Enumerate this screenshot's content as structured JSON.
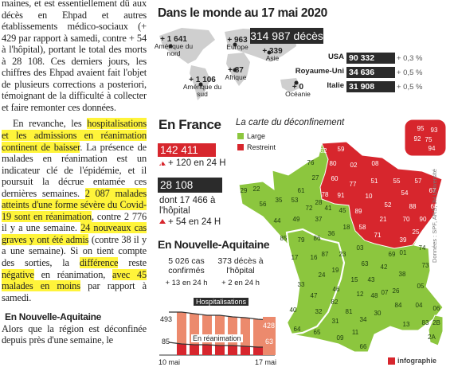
{
  "article": {
    "paragraphs": [
      [
        {
          "text": "maines, et est essentiellement dû aux décès en Ehpad et autres établissements médico-sociaux (+ 429 par rapport à samedi, contre + 54 à l'hôpital), portant le total des morts à 28 108. Ces derniers jours, les chiffres des Ehpad avaient fait l'objet de plusieurs corrections a posteriori, témoignant de la difficulté à collecter et faire remonter ces données.",
          "highlight": false
        }
      ],
      [
        {
          "text": "En revanche, les ",
          "highlight": false
        },
        {
          "text": "hospitalisations et les admissions en réanimation continent de baisser",
          "highlight": true
        },
        {
          "text": ". La présence de malades en réanimation est un indicateur clé de l'épidémie, et il poursuit la décrue entamée ces dernières semaines. ",
          "highlight": false
        },
        {
          "text": "2 087 malades atteints d'une forme sévère du Covid-19 sont en réanimation",
          "highlight": true
        },
        {
          "text": ", contre 2 776 il y a une semaine. ",
          "highlight": false
        },
        {
          "text": "24 nouveaux cas graves y ont été admis",
          "highlight": true
        },
        {
          "text": " (contre 38 il y a une semaine). Si on tient compte des sorties, la ",
          "highlight": false
        },
        {
          "text": "différence",
          "highlight": true
        },
        {
          "text": " reste ",
          "highlight": false
        },
        {
          "text": "négative",
          "highlight": true
        },
        {
          "text": " en réanimation, ",
          "highlight": false
        },
        {
          "text": "avec 45 malades en moins",
          "highlight": true
        },
        {
          "text": " par rapport à samedi.",
          "highlight": false
        }
      ]
    ],
    "subheading": "En Nouvelle-Aquitaine",
    "closing": "Alors que la région est déconfinée depuis près d'une semaine, le"
  },
  "world": {
    "title": "Dans le monde au 17 mai 2020",
    "total": "314 987 décès",
    "regions": [
      {
        "change": "+ 1 641",
        "name": "Amérique du nord"
      },
      {
        "change": "+ 963",
        "name": "Europe"
      },
      {
        "change": "+ 339",
        "name": "Asie"
      },
      {
        "change": "+ 87",
        "name": "Afrique"
      },
      {
        "change": "+ 1 106",
        "name": "Amérique du sud"
      },
      {
        "change": "+ 0",
        "name": "Océanie"
      }
    ],
    "countries": [
      {
        "name": "USA",
        "deaths": "90 332",
        "change": "+ 0,3 %"
      },
      {
        "name": "Royaume-Uni",
        "deaths": "34 636",
        "change": "+ 0,5 %"
      },
      {
        "name": "Italie",
        "deaths": "31 908",
        "change": "+ 0,5 %"
      }
    ]
  },
  "france": {
    "title": "En France",
    "cases": "142 411 cas",
    "cases_change": "+ 120 en 24 H",
    "deaths": "28 108 décès",
    "hospital": "dont 17 466 à l'hôpital",
    "deaths_change": "+ 54 en 24 H"
  },
  "aquitaine": {
    "title": "En Nouvelle-Aquitaine",
    "cases": "5 026 cas confirmés",
    "cases_change": "+ 13 en 24 h",
    "deaths": "373 décès à l'hôpital",
    "deaths_change": "+ 2 en 24 h",
    "chart": {
      "hosp_label": "Hospitalisations",
      "hosp_start": "493",
      "hosp_end": "428",
      "rea_label": "En réanimation",
      "rea_start": "85",
      "rea_end": "63",
      "x_start": "10 mai",
      "x_end": "17 mai"
    }
  },
  "map": {
    "title": "La carte du déconfinement",
    "legend": [
      {
        "label": "Large",
        "color": "#8cc63e"
      },
      {
        "label": "Restreint",
        "color": "#d7262d"
      }
    ],
    "departments": [
      {
        "code": "62",
        "zone": 1
      },
      {
        "code": "59",
        "zone": 1
      },
      {
        "code": "80",
        "zone": 1
      },
      {
        "code": "02",
        "zone": 1
      },
      {
        "code": "08",
        "zone": 1
      },
      {
        "code": "60",
        "zone": 1
      },
      {
        "code": "78",
        "zone": 1
      },
      {
        "code": "91",
        "zone": 1
      },
      {
        "code": "77",
        "zone": 1
      },
      {
        "code": "51",
        "zone": 1
      },
      {
        "code": "55",
        "zone": 1
      },
      {
        "code": "57",
        "zone": 1
      },
      {
        "code": "67",
        "zone": 1
      },
      {
        "code": "54",
        "zone": 1
      },
      {
        "code": "88",
        "zone": 1
      },
      {
        "code": "68",
        "zone": 1
      },
      {
        "code": "52",
        "zone": 1
      },
      {
        "code": "10",
        "zone": 1
      },
      {
        "code": "89",
        "zone": 1
      },
      {
        "code": "21",
        "zone": 1
      },
      {
        "code": "70",
        "zone": 1
      },
      {
        "code": "90",
        "zone": 1
      },
      {
        "code": "25",
        "zone": 1
      },
      {
        "code": "39",
        "zone": 1
      },
      {
        "code": "71",
        "zone": 1
      },
      {
        "code": "58",
        "zone": 1
      },
      {
        "code": "95",
        "zone": 1
      },
      {
        "code": "93",
        "zone": 1
      },
      {
        "code": "92",
        "zone": 1
      },
      {
        "code": "75",
        "zone": 1
      },
      {
        "code": "94",
        "zone": 1
      },
      {
        "code": "76",
        "zone": 0
      },
      {
        "code": "27",
        "zone": 0
      },
      {
        "code": "61",
        "zone": 0
      },
      {
        "code": "28",
        "zone": 0
      },
      {
        "code": "29",
        "zone": 0
      },
      {
        "code": "22",
        "zone": 0
      },
      {
        "code": "56",
        "zone": 0
      },
      {
        "code": "35",
        "zone": 0
      },
      {
        "code": "53",
        "zone": 0
      },
      {
        "code": "72",
        "zone": 0
      },
      {
        "code": "44",
        "zone": 0
      },
      {
        "code": "49",
        "zone": 0
      },
      {
        "code": "37",
        "zone": 0
      },
      {
        "code": "41",
        "zone": 0
      },
      {
        "code": "45",
        "zone": 0
      },
      {
        "code": "36",
        "zone": 0
      },
      {
        "code": "18",
        "zone": 0
      },
      {
        "code": "85",
        "zone": 0
      },
      {
        "code": "79",
        "zone": 0
      },
      {
        "code": "86",
        "zone": 0
      },
      {
        "code": "87",
        "zone": 0
      },
      {
        "code": "23",
        "zone": 0
      },
      {
        "code": "03",
        "zone": 0
      },
      {
        "code": "17",
        "zone": 0
      },
      {
        "code": "16",
        "zone": 0
      },
      {
        "code": "19",
        "zone": 0
      },
      {
        "code": "63",
        "zone": 0
      },
      {
        "code": "42",
        "zone": 0
      },
      {
        "code": "69",
        "zone": 0
      },
      {
        "code": "01",
        "zone": 0
      },
      {
        "code": "74",
        "zone": 0
      },
      {
        "code": "73",
        "zone": 0
      },
      {
        "code": "38",
        "zone": 0
      },
      {
        "code": "24",
        "zone": 0
      },
      {
        "code": "33",
        "zone": 0
      },
      {
        "code": "15",
        "zone": 0
      },
      {
        "code": "43",
        "zone": 0
      },
      {
        "code": "26",
        "zone": 0
      },
      {
        "code": "07",
        "zone": 0
      },
      {
        "code": "05",
        "zone": 0
      },
      {
        "code": "47",
        "zone": 0
      },
      {
        "code": "46",
        "zone": 0
      },
      {
        "code": "12",
        "zone": 0
      },
      {
        "code": "48",
        "zone": 0
      },
      {
        "code": "40",
        "zone": 0
      },
      {
        "code": "82",
        "zone": 0
      },
      {
        "code": "81",
        "zone": 0
      },
      {
        "code": "32",
        "zone": 0
      },
      {
        "code": "30",
        "zone": 0
      },
      {
        "code": "84",
        "zone": 0
      },
      {
        "code": "04",
        "zone": 0
      },
      {
        "code": "06",
        "zone": 0
      },
      {
        "code": "34",
        "zone": 0
      },
      {
        "code": "13",
        "zone": 0
      },
      {
        "code": "83",
        "zone": 0
      },
      {
        "code": "31",
        "zone": 0
      },
      {
        "code": "64",
        "zone": 0
      },
      {
        "code": "65",
        "zone": 0
      },
      {
        "code": "09",
        "zone": 0
      },
      {
        "code": "11",
        "zone": 0
      },
      {
        "code": "66",
        "zone": 0
      },
      {
        "code": "2B",
        "zone": 0
      },
      {
        "code": "2A",
        "zone": 0
      }
    ]
  },
  "source": "Données : SPF, ARS, JH Université",
  "credit": "infographie"
}
